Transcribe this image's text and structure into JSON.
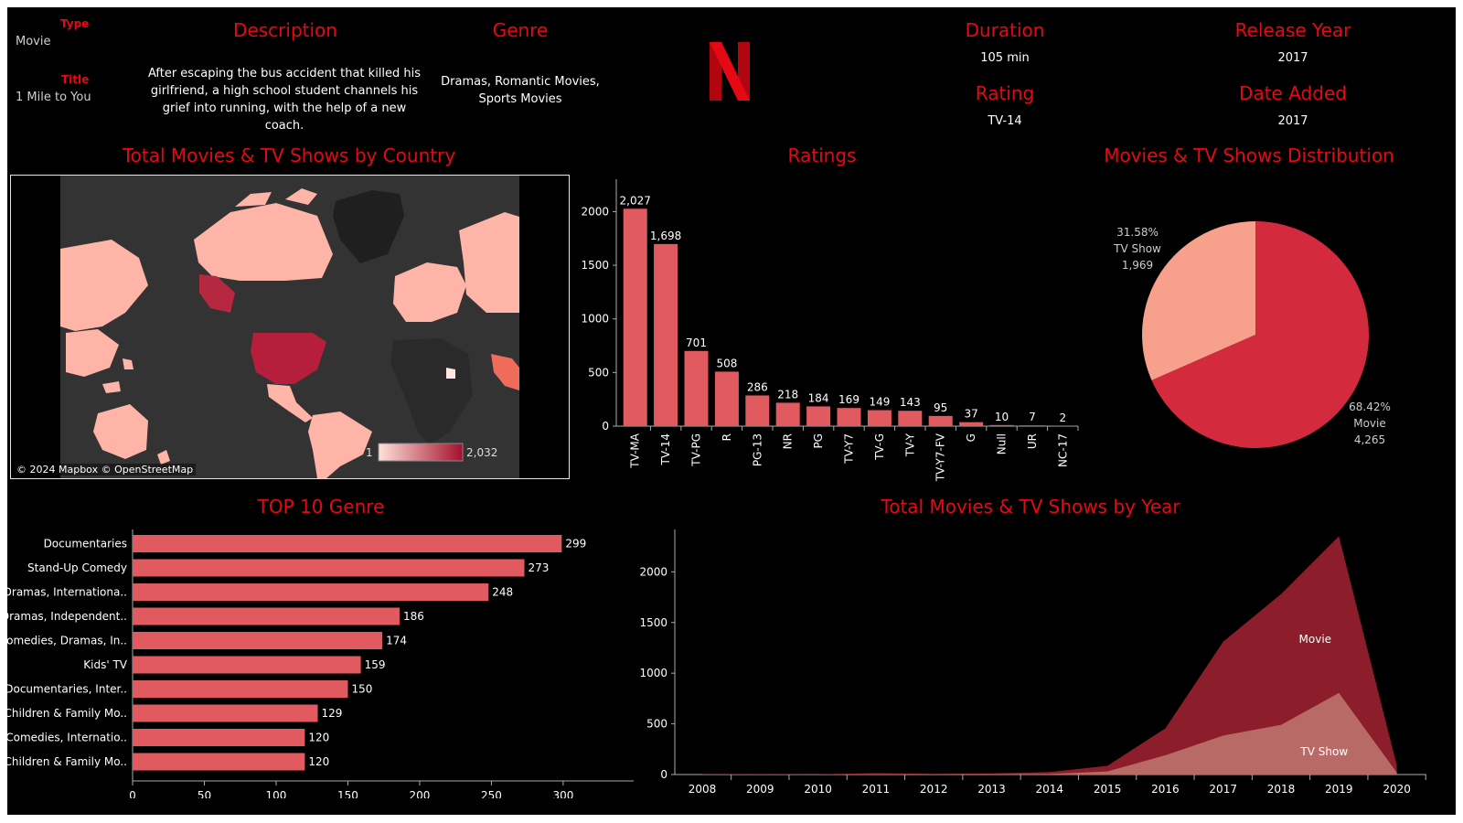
{
  "header": {
    "type_label": "Type",
    "type_value": "Movie",
    "title_label": "Title",
    "title_value": "1 Mile to You",
    "description_label": "Description",
    "description_value": "After escaping the bus accident that killed his girlfriend, a high school student channels his grief into running, with the help of a new coach.",
    "genre_label": "Genre",
    "genre_value": "Dramas, Romantic Movies, Sports Movies",
    "logo_letter": "N",
    "duration_label": "Duration",
    "duration_value": "105 min",
    "rating_label": "Rating",
    "rating_value": "TV-14",
    "release_label": "Release Year",
    "release_value": "2017",
    "added_label": "Date Added",
    "added_value": "2017"
  },
  "map": {
    "title": "Total Movies & TV Shows by Country",
    "legend_min": "1",
    "legend_max": "2,032",
    "attribution": "© 2024 Mapbox © OpenStreetMap"
  },
  "titles": {
    "ratings": "Ratings",
    "distribution": "Movies & TV Shows Distribution",
    "genre": "TOP 10 Genre",
    "year": "Total Movies & TV Shows by Year"
  },
  "colors": {
    "bar": "#e05a5f",
    "movie_slice": "#d42a3e",
    "tv_slice": "#f7a08c",
    "movie_area": "#8b1e2a",
    "tv_area": "#b86a66",
    "accent": "#e50914"
  },
  "chart_data": [
    {
      "type": "bar",
      "title": "Ratings",
      "categories": [
        "TV-MA",
        "TV-14",
        "TV-PG",
        "R",
        "PG-13",
        "NR",
        "PG",
        "TV-Y7",
        "TV-G",
        "TV-Y",
        "TV-Y7-FV",
        "G",
        "Null",
        "UR",
        "NC-17"
      ],
      "values": [
        2027,
        1698,
        701,
        508,
        286,
        218,
        184,
        169,
        149,
        143,
        95,
        37,
        10,
        7,
        2
      ],
      "value_labels": [
        "2,027",
        "1,698",
        "701",
        "508",
        "286",
        "218",
        "184",
        "169",
        "149",
        "143",
        "95",
        "37",
        "10",
        "7",
        "2"
      ],
      "yticks": [
        0,
        500,
        1000,
        1500,
        2000
      ],
      "ylim": [
        0,
        2200
      ]
    },
    {
      "type": "pie",
      "title": "Movies & TV Shows Distribution",
      "slices": [
        {
          "name": "Movie",
          "value": 4265,
          "pct": "68.42%",
          "label": "4,265"
        },
        {
          "name": "TV Show",
          "value": 1969,
          "pct": "31.58%",
          "label": "1,969"
        }
      ]
    },
    {
      "type": "bar",
      "title": "TOP 10 Genre",
      "orientation": "horizontal",
      "categories": [
        "Documentaries",
        "Stand-Up Comedy",
        "Dramas, Internationa..",
        "Dramas, Independent..",
        "Comedies, Dramas, In..",
        "Kids' TV",
        "Documentaries, Inter..",
        "Children & Family Mo..",
        "Comedies, Internatio..",
        "Children & Family Mo.."
      ],
      "values": [
        299,
        273,
        248,
        186,
        174,
        159,
        150,
        129,
        120,
        120
      ],
      "xticks": [
        0,
        50,
        100,
        150,
        200,
        250,
        300
      ],
      "xlim": [
        0,
        330
      ]
    },
    {
      "type": "area",
      "title": "Total Movies & TV Shows by Year",
      "x": [
        "2008",
        "2009",
        "2010",
        "2011",
        "2012",
        "2013",
        "2014",
        "2015",
        "2016",
        "2017",
        "2018",
        "2019",
        "2020"
      ],
      "series": [
        {
          "name": "TV Show",
          "values": [
            1,
            2,
            1,
            2,
            3,
            5,
            6,
            30,
            190,
            385,
            490,
            805,
            20
          ]
        },
        {
          "name": "Movie",
          "values": [
            1,
            2,
            1,
            13,
            3,
            6,
            19,
            56,
            265,
            925,
            1290,
            1546,
            70
          ]
        }
      ],
      "stacked": true,
      "yticks": [
        0,
        500,
        1000,
        1500,
        2000
      ],
      "ylim": [
        0,
        2400
      ]
    }
  ]
}
